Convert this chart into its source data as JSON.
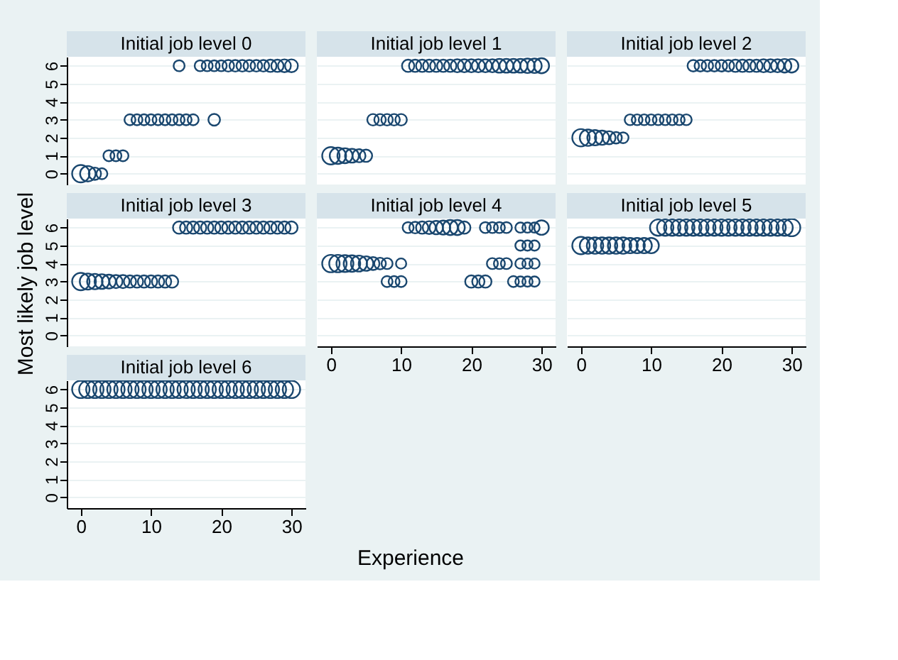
{
  "chart_data": [
    {
      "type": "bubble",
      "title": "Initial job level 0",
      "color": "#1a476f",
      "marker": "circle",
      "grid": "y",
      "tick_labels": "y",
      "xlim": [
        -2,
        32
      ],
      "ylim": [
        -0.6,
        6.5
      ],
      "xticks": [
        0,
        10,
        20,
        30
      ],
      "yticks": [
        0,
        1,
        2,
        3,
        4,
        5,
        6
      ],
      "x": [
        0,
        1,
        2,
        3,
        4,
        5,
        6,
        7,
        8,
        9,
        10,
        11,
        12,
        13,
        14,
        15,
        16,
        19,
        14,
        17,
        18,
        19,
        20,
        21,
        22,
        23,
        24,
        25,
        26,
        27,
        28,
        29,
        30
      ],
      "values": [
        0,
        0,
        0,
        0,
        1,
        1,
        1,
        3,
        3,
        3,
        3,
        3,
        3,
        3,
        3,
        3,
        3,
        3,
        6,
        6,
        6,
        6,
        6,
        6,
        6,
        6,
        6,
        6,
        6,
        6,
        6,
        6,
        6
      ],
      "sizes": [
        1,
        0.8,
        0.5,
        0.4,
        0.4,
        0.4,
        0.4,
        0.4,
        0.4,
        0.4,
        0.4,
        0.4,
        0.4,
        0.4,
        0.4,
        0.4,
        0.4,
        0.45,
        0.4,
        0.4,
        0.4,
        0.4,
        0.4,
        0.45,
        0.45,
        0.45,
        0.45,
        0.45,
        0.45,
        0.5,
        0.5,
        0.55,
        0.55
      ]
    },
    {
      "type": "bubble",
      "title": "Initial job level 1",
      "color": "#1a476f",
      "marker": "circle",
      "grid": "y",
      "tick_labels": false,
      "xlim": [
        -2,
        32
      ],
      "ylim": [
        -0.6,
        6.5
      ],
      "xticks": [
        0,
        10,
        20,
        30
      ],
      "yticks": [
        0,
        1,
        2,
        3,
        4,
        5,
        6
      ],
      "x": [
        0,
        1,
        2,
        3,
        4,
        5,
        6,
        7,
        8,
        9,
        10,
        11,
        12,
        13,
        14,
        15,
        16,
        17,
        18,
        19,
        20,
        21,
        22,
        23,
        24,
        25,
        26,
        27,
        28,
        29,
        30
      ],
      "values": [
        1,
        1,
        1,
        1,
        1,
        1,
        3,
        3,
        3,
        3,
        3,
        6,
        6,
        6,
        6,
        6,
        6,
        6,
        6,
        6,
        6,
        6,
        6,
        6,
        6,
        6,
        6,
        6,
        6,
        6,
        6
      ],
      "sizes": [
        1,
        0.88,
        0.75,
        0.63,
        0.56,
        0.5,
        0.44,
        0.44,
        0.44,
        0.44,
        0.44,
        0.5,
        0.5,
        0.5,
        0.5,
        0.5,
        0.5,
        0.5,
        0.56,
        0.56,
        0.56,
        0.56,
        0.56,
        0.56,
        0.63,
        0.63,
        0.63,
        0.63,
        0.69,
        0.69,
        0.75
      ]
    },
    {
      "type": "bubble",
      "title": "Initial job level 2",
      "color": "#1a476f",
      "marker": "circle",
      "grid": "y",
      "tick_labels": false,
      "xlim": [
        -2,
        32
      ],
      "ylim": [
        -0.6,
        6.5
      ],
      "xticks": [
        0,
        10,
        20,
        30
      ],
      "yticks": [
        0,
        1,
        2,
        3,
        4,
        5,
        6
      ],
      "x": [
        0,
        1,
        2,
        3,
        4,
        5,
        6,
        7,
        8,
        9,
        10,
        11,
        12,
        13,
        14,
        15,
        16,
        17,
        18,
        19,
        20,
        21,
        22,
        23,
        24,
        25,
        26,
        27,
        28,
        29,
        30
      ],
      "values": [
        2,
        2,
        2,
        2,
        2,
        2,
        2,
        3,
        3,
        3,
        3,
        3,
        3,
        3,
        3,
        3,
        6,
        6,
        6,
        6,
        6,
        6,
        6,
        6,
        6,
        6,
        6,
        6,
        6,
        6,
        6
      ],
      "sizes": [
        1,
        0.89,
        0.78,
        0.67,
        0.56,
        0.44,
        0.39,
        0.39,
        0.39,
        0.39,
        0.39,
        0.39,
        0.39,
        0.39,
        0.39,
        0.39,
        0.44,
        0.44,
        0.44,
        0.44,
        0.44,
        0.44,
        0.5,
        0.5,
        0.5,
        0.5,
        0.56,
        0.56,
        0.56,
        0.61,
        0.61
      ]
    },
    {
      "type": "bubble",
      "title": "Initial job level 3",
      "ylabel": "Most likely job level",
      "color": "#1a476f",
      "marker": "circle",
      "grid": "y",
      "tick_labels": "y",
      "xlim": [
        -2,
        32
      ],
      "ylim": [
        -0.6,
        6.5
      ],
      "xticks": [
        0,
        10,
        20,
        30
      ],
      "yticks": [
        0,
        1,
        2,
        3,
        4,
        5,
        6
      ],
      "x": [
        0,
        1,
        2,
        3,
        4,
        5,
        6,
        7,
        8,
        9,
        10,
        11,
        12,
        13,
        14,
        15,
        16,
        17,
        18,
        19,
        20,
        21,
        22,
        23,
        24,
        25,
        26,
        27,
        28,
        29,
        30
      ],
      "values": [
        3,
        3,
        3,
        3,
        3,
        3,
        3,
        3,
        3,
        3,
        3,
        3,
        3,
        3,
        6,
        6,
        6,
        6,
        6,
        6,
        6,
        6,
        6,
        6,
        6,
        6,
        6,
        6,
        6,
        6,
        6
      ],
      "sizes": [
        1,
        0.86,
        0.79,
        0.71,
        0.64,
        0.57,
        0.57,
        0.5,
        0.5,
        0.5,
        0.5,
        0.5,
        0.5,
        0.5,
        0.5,
        0.5,
        0.5,
        0.5,
        0.5,
        0.5,
        0.5,
        0.5,
        0.5,
        0.5,
        0.5,
        0.5,
        0.5,
        0.5,
        0.5,
        0.5,
        0.5
      ]
    },
    {
      "type": "bubble",
      "title": "Initial job level 4",
      "color": "#1a476f",
      "marker": "circle",
      "grid": "y",
      "tick_labels": "x",
      "xlim": [
        -2,
        32
      ],
      "ylim": [
        -0.6,
        6.5
      ],
      "xticks": [
        0,
        10,
        20,
        30
      ],
      "yticks": [
        0,
        1,
        2,
        3,
        4,
        5,
        6
      ],
      "x": [
        11,
        12,
        13,
        14,
        15,
        16,
        17,
        18,
        19,
        22,
        23,
        24,
        25,
        27,
        28,
        29,
        30,
        27,
        28,
        29,
        0,
        1,
        2,
        3,
        4,
        5,
        6,
        7,
        8,
        10,
        23,
        24,
        25,
        27,
        28,
        29,
        8,
        9,
        10,
        20,
        21,
        22,
        26,
        27,
        28,
        29
      ],
      "values": [
        6,
        6,
        6,
        6,
        6,
        6,
        6,
        6,
        6,
        6,
        6,
        6,
        6,
        6,
        6,
        6,
        6,
        5,
        5,
        5,
        4,
        4,
        4,
        4,
        4,
        4,
        4,
        4,
        4,
        4,
        4,
        4,
        4,
        4,
        4,
        4,
        3,
        3,
        3,
        3,
        3,
        3,
        3,
        3,
        3,
        3
      ],
      "sizes": [
        0.4,
        0.45,
        0.5,
        0.55,
        0.6,
        0.65,
        0.75,
        0.75,
        0.5,
        0.4,
        0.4,
        0.4,
        0.4,
        0.35,
        0.35,
        0.35,
        0.7,
        0.35,
        0.35,
        0.35,
        1,
        1,
        0.95,
        0.9,
        0.85,
        0.7,
        0.55,
        0.45,
        0.4,
        0.35,
        0.4,
        0.4,
        0.4,
        0.35,
        0.35,
        0.35,
        0.4,
        0.4,
        0.4,
        0.5,
        0.5,
        0.5,
        0.4,
        0.35,
        0.35,
        0.35
      ]
    },
    {
      "type": "bubble",
      "title": "Initial job level 5",
      "color": "#1a476f",
      "marker": "circle",
      "grid": "y",
      "tick_labels": "x",
      "xlim": [
        -2,
        32
      ],
      "ylim": [
        -0.6,
        6.5
      ],
      "xticks": [
        0,
        10,
        20,
        30
      ],
      "yticks": [
        0,
        1,
        2,
        3,
        4,
        5,
        6
      ],
      "x": [
        0,
        1,
        2,
        3,
        4,
        5,
        6,
        7,
        8,
        9,
        10,
        11,
        12,
        13,
        14,
        15,
        16,
        17,
        18,
        19,
        20,
        21,
        22,
        23,
        24,
        25,
        26,
        27,
        28,
        29,
        30
      ],
      "values": [
        5,
        5,
        5,
        5,
        5,
        5,
        5,
        5,
        5,
        5,
        5,
        6,
        6,
        6,
        6,
        6,
        6,
        6,
        6,
        6,
        6,
        6,
        6,
        6,
        6,
        6,
        6,
        6,
        6,
        6,
        6
      ],
      "sizes": [
        1,
        0.89,
        0.89,
        0.89,
        0.89,
        0.89,
        0.89,
        0.78,
        0.78,
        0.78,
        0.78,
        0.89,
        0.89,
        0.89,
        0.89,
        0.89,
        0.89,
        0.89,
        0.89,
        0.89,
        0.89,
        0.89,
        0.89,
        0.89,
        0.89,
        0.89,
        0.89,
        0.89,
        0.89,
        0.89,
        1
      ]
    },
    {
      "type": "bubble",
      "title": "Initial job level 6",
      "xlabel": "Experience",
      "color": "#1a476f",
      "marker": "circle",
      "grid": "y",
      "xlim": [
        -2,
        32
      ],
      "ylim": [
        -0.6,
        6.5
      ],
      "xticks": [
        0,
        10,
        20,
        30
      ],
      "yticks": [
        0,
        1,
        2,
        3,
        4,
        5,
        6
      ],
      "x": [
        0,
        1,
        2,
        3,
        4,
        5,
        6,
        7,
        8,
        9,
        10,
        11,
        12,
        13,
        14,
        15,
        16,
        17,
        18,
        19,
        20,
        21,
        22,
        23,
        24,
        25,
        26,
        27,
        28,
        29,
        30
      ],
      "values": [
        6,
        6,
        6,
        6,
        6,
        6,
        6,
        6,
        6,
        6,
        6,
        6,
        6,
        6,
        6,
        6,
        6,
        6,
        6,
        6,
        6,
        6,
        6,
        6,
        6,
        6,
        6,
        6,
        6,
        6,
        6
      ],
      "sizes": [
        1,
        1,
        1,
        1,
        1,
        1,
        1,
        1,
        1,
        1,
        1,
        1,
        1,
        1,
        1,
        1,
        1,
        1,
        1,
        1,
        1,
        1,
        1,
        1,
        1,
        1,
        1,
        1,
        1,
        1,
        1
      ]
    }
  ]
}
